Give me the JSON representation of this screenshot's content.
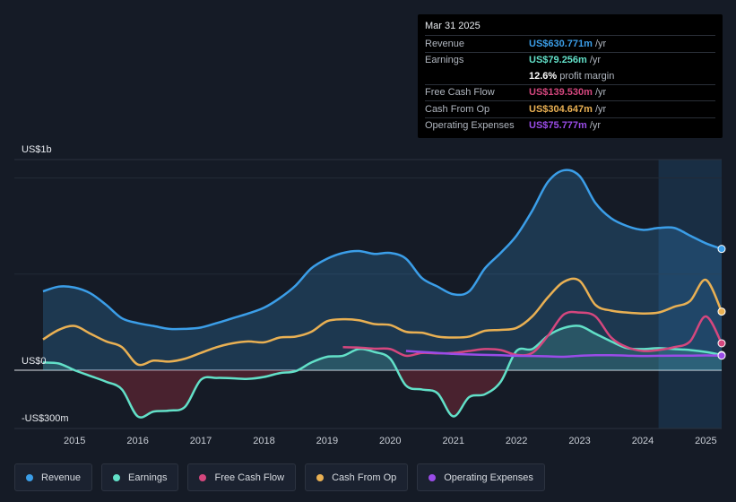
{
  "tooltip": {
    "date": "Mar 31 2025",
    "rows": [
      {
        "label": "Revenue",
        "value": "US$630.771m",
        "unit": "/yr",
        "color": "#3b9ee8"
      },
      {
        "label": "Earnings",
        "value": "US$79.256m",
        "unit": "/yr",
        "color": "#62e0c8"
      },
      {
        "label": "",
        "value": "12.6%",
        "unit": "profit margin",
        "color": "#ffffff"
      },
      {
        "label": "Free Cash Flow",
        "value": "US$139.530m",
        "unit": "/yr",
        "color": "#d5477e"
      },
      {
        "label": "Cash From Op",
        "value": "US$304.647m",
        "unit": "/yr",
        "color": "#e9b053"
      },
      {
        "label": "Operating Expenses",
        "value": "US$75.777m",
        "unit": "/yr",
        "color": "#9a4ce8"
      }
    ]
  },
  "chart_data": {
    "type": "area",
    "y_top_label": "US$1b",
    "y_zero_label": "US$0",
    "y_bottom_label": "-US$300m",
    "ylim": [
      -300,
      1000
    ],
    "xlim": [
      2014.5,
      2025.25
    ],
    "x_ticks": [
      "2015",
      "2016",
      "2017",
      "2018",
      "2019",
      "2020",
      "2021",
      "2022",
      "2023",
      "2024",
      "2025"
    ],
    "forecast_start": 2024.25,
    "series": [
      {
        "name": "Revenue",
        "color": "#3b9ee8",
        "fill": true,
        "points": [
          [
            2014.5,
            410
          ],
          [
            2014.75,
            435
          ],
          [
            2015,
            430
          ],
          [
            2015.25,
            400
          ],
          [
            2015.5,
            340
          ],
          [
            2015.75,
            270
          ],
          [
            2016,
            245
          ],
          [
            2016.25,
            230
          ],
          [
            2016.5,
            215
          ],
          [
            2016.75,
            215
          ],
          [
            2017,
            222
          ],
          [
            2017.25,
            245
          ],
          [
            2017.5,
            270
          ],
          [
            2017.75,
            295
          ],
          [
            2018,
            325
          ],
          [
            2018.25,
            375
          ],
          [
            2018.5,
            440
          ],
          [
            2018.75,
            530
          ],
          [
            2019,
            580
          ],
          [
            2019.25,
            610
          ],
          [
            2019.5,
            620
          ],
          [
            2019.75,
            605
          ],
          [
            2020,
            610
          ],
          [
            2020.25,
            580
          ],
          [
            2020.5,
            480
          ],
          [
            2020.75,
            435
          ],
          [
            2021,
            395
          ],
          [
            2021.25,
            410
          ],
          [
            2021.5,
            530
          ],
          [
            2021.75,
            610
          ],
          [
            2022,
            700
          ],
          [
            2022.25,
            830
          ],
          [
            2022.5,
            980
          ],
          [
            2022.75,
            1040
          ],
          [
            2023,
            1010
          ],
          [
            2023.25,
            870
          ],
          [
            2023.5,
            790
          ],
          [
            2023.75,
            750
          ],
          [
            2024,
            730
          ],
          [
            2024.25,
            740
          ],
          [
            2024.5,
            740
          ],
          [
            2024.75,
            700
          ],
          [
            2025,
            660
          ],
          [
            2025.25,
            631
          ]
        ]
      },
      {
        "name": "Earnings",
        "color": "#62e0c8",
        "fill": true,
        "points": [
          [
            2014.5,
            40
          ],
          [
            2014.75,
            35
          ],
          [
            2015,
            0
          ],
          [
            2015.25,
            -30
          ],
          [
            2015.5,
            -60
          ],
          [
            2015.75,
            -100
          ],
          [
            2016,
            -240
          ],
          [
            2016.25,
            -215
          ],
          [
            2016.5,
            -210
          ],
          [
            2016.75,
            -190
          ],
          [
            2017,
            -50
          ],
          [
            2017.25,
            -40
          ],
          [
            2017.5,
            -42
          ],
          [
            2017.75,
            -45
          ],
          [
            2018,
            -35
          ],
          [
            2018.25,
            -15
          ],
          [
            2018.5,
            -5
          ],
          [
            2018.75,
            40
          ],
          [
            2019,
            70
          ],
          [
            2019.25,
            75
          ],
          [
            2019.5,
            110
          ],
          [
            2019.75,
            95
          ],
          [
            2020,
            60
          ],
          [
            2020.25,
            -80
          ],
          [
            2020.5,
            -100
          ],
          [
            2020.75,
            -120
          ],
          [
            2021,
            -240
          ],
          [
            2021.25,
            -140
          ],
          [
            2021.5,
            -125
          ],
          [
            2021.75,
            -60
          ],
          [
            2022,
            100
          ],
          [
            2022.25,
            110
          ],
          [
            2022.5,
            180
          ],
          [
            2022.75,
            220
          ],
          [
            2023,
            230
          ],
          [
            2023.25,
            190
          ],
          [
            2023.5,
            150
          ],
          [
            2023.75,
            115
          ],
          [
            2024,
            110
          ],
          [
            2024.25,
            115
          ],
          [
            2024.5,
            110
          ],
          [
            2024.75,
            105
          ],
          [
            2025,
            95
          ],
          [
            2025.25,
            79
          ]
        ]
      },
      {
        "name": "Free Cash Flow",
        "color": "#d5477e",
        "fill": false,
        "points": [
          [
            2019.25,
            120
          ],
          [
            2019.5,
            118
          ],
          [
            2019.75,
            112
          ],
          [
            2020,
            110
          ],
          [
            2020.25,
            75
          ],
          [
            2020.5,
            90
          ],
          [
            2020.75,
            88
          ],
          [
            2021,
            90
          ],
          [
            2021.25,
            100
          ],
          [
            2021.5,
            110
          ],
          [
            2021.75,
            105
          ],
          [
            2022,
            80
          ],
          [
            2022.25,
            90
          ],
          [
            2022.5,
            180
          ],
          [
            2022.75,
            290
          ],
          [
            2023,
            300
          ],
          [
            2023.25,
            280
          ],
          [
            2023.5,
            170
          ],
          [
            2023.75,
            120
          ],
          [
            2024,
            100
          ],
          [
            2024.25,
            105
          ],
          [
            2024.5,
            120
          ],
          [
            2024.75,
            150
          ],
          [
            2025,
            280
          ],
          [
            2025.25,
            140
          ]
        ]
      },
      {
        "name": "Cash From Op",
        "color": "#e9b053",
        "fill": false,
        "points": [
          [
            2014.5,
            160
          ],
          [
            2014.75,
            210
          ],
          [
            2015,
            230
          ],
          [
            2015.25,
            190
          ],
          [
            2015.5,
            150
          ],
          [
            2015.75,
            120
          ],
          [
            2016,
            30
          ],
          [
            2016.25,
            50
          ],
          [
            2016.5,
            45
          ],
          [
            2016.75,
            60
          ],
          [
            2017,
            90
          ],
          [
            2017.25,
            120
          ],
          [
            2017.5,
            140
          ],
          [
            2017.75,
            150
          ],
          [
            2018,
            145
          ],
          [
            2018.25,
            170
          ],
          [
            2018.5,
            175
          ],
          [
            2018.75,
            200
          ],
          [
            2019,
            255
          ],
          [
            2019.25,
            265
          ],
          [
            2019.5,
            260
          ],
          [
            2019.75,
            240
          ],
          [
            2020,
            235
          ],
          [
            2020.25,
            200
          ],
          [
            2020.5,
            195
          ],
          [
            2020.75,
            175
          ],
          [
            2021,
            170
          ],
          [
            2021.25,
            175
          ],
          [
            2021.5,
            205
          ],
          [
            2021.75,
            210
          ],
          [
            2022,
            220
          ],
          [
            2022.25,
            280
          ],
          [
            2022.5,
            380
          ],
          [
            2022.75,
            460
          ],
          [
            2023,
            465
          ],
          [
            2023.25,
            340
          ],
          [
            2023.5,
            310
          ],
          [
            2023.75,
            300
          ],
          [
            2024,
            295
          ],
          [
            2024.25,
            300
          ],
          [
            2024.5,
            330
          ],
          [
            2024.75,
            360
          ],
          [
            2025,
            470
          ],
          [
            2025.25,
            305
          ]
        ]
      },
      {
        "name": "Operating Expenses",
        "color": "#9a4ce8",
        "fill": false,
        "points": [
          [
            2020.25,
            100
          ],
          [
            2020.5,
            95
          ],
          [
            2020.75,
            90
          ],
          [
            2021,
            85
          ],
          [
            2021.25,
            82
          ],
          [
            2021.5,
            80
          ],
          [
            2021.75,
            78
          ],
          [
            2022,
            75
          ],
          [
            2022.25,
            74
          ],
          [
            2022.5,
            72
          ],
          [
            2022.75,
            70
          ],
          [
            2023,
            75
          ],
          [
            2023.25,
            78
          ],
          [
            2023.5,
            78
          ],
          [
            2023.75,
            76
          ],
          [
            2024,
            74
          ],
          [
            2024.25,
            75
          ],
          [
            2024.5,
            76
          ],
          [
            2024.75,
            76
          ],
          [
            2025,
            77
          ],
          [
            2025.25,
            76
          ]
        ]
      }
    ]
  },
  "legend": [
    {
      "label": "Revenue",
      "color": "#3b9ee8"
    },
    {
      "label": "Earnings",
      "color": "#62e0c8"
    },
    {
      "label": "Free Cash Flow",
      "color": "#d5477e"
    },
    {
      "label": "Cash From Op",
      "color": "#e9b053"
    },
    {
      "label": "Operating Expenses",
      "color": "#9a4ce8"
    }
  ]
}
